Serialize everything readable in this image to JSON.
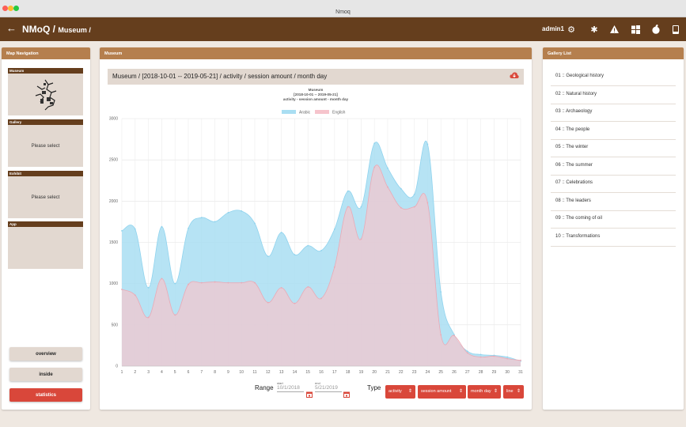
{
  "window": {
    "title": "Nmoq"
  },
  "header": {
    "brand": "NMoQ / ",
    "crumb": "Museum /",
    "user": "admin1",
    "icons": [
      "back-arrow-icon",
      "gear-icon",
      "bug-icon",
      "warning-icon",
      "windows-icon",
      "apple-icon",
      "tablet-icon"
    ]
  },
  "map_nav": {
    "title": "Map Navigation",
    "museum_label": "Museum",
    "gallery_label": "Gallery",
    "gallery_value": "Please select",
    "exhibit_label": "Exhibit",
    "exhibit_value": "Please select",
    "app_label": "App",
    "buttons": {
      "overview": "overview",
      "inside": "inside",
      "statistics": "statistics"
    }
  },
  "museum": {
    "title": "Museum",
    "path": "Museum / [2018-10-01 -- 2019-05-21] / activity / session amount / month day"
  },
  "chart_data": {
    "type": "area",
    "title": "Museum",
    "subtitle": "[2018-10-01 -- 2019-05-21]",
    "subtitle2": "activity - session amount - month day",
    "categories": [
      "1",
      "2",
      "3",
      "4",
      "5",
      "6",
      "7",
      "8",
      "9",
      "10",
      "11",
      "12",
      "13",
      "14",
      "15",
      "16",
      "17",
      "18",
      "19",
      "20",
      "21",
      "22",
      "23",
      "24",
      "25",
      "26",
      "27",
      "28",
      "29",
      "30",
      "31"
    ],
    "series": [
      {
        "name": "Arabic",
        "color": "#a9def2",
        "values": [
          1640,
          1660,
          950,
          1690,
          1000,
          1670,
          1800,
          1750,
          1860,
          1880,
          1730,
          1330,
          1620,
          1350,
          1460,
          1400,
          1660,
          2120,
          1930,
          2700,
          2400,
          2150,
          2080,
          2690,
          900,
          380,
          180,
          140,
          130,
          110,
          60
        ]
      },
      {
        "name": "English",
        "color": "#f6c4cc",
        "values": [
          930,
          860,
          590,
          1060,
          620,
          990,
          1010,
          1020,
          1010,
          1010,
          1010,
          770,
          950,
          760,
          960,
          820,
          1200,
          1930,
          1540,
          2410,
          2170,
          1920,
          1930,
          1980,
          380,
          370,
          160,
          110,
          120,
          90,
          70
        ]
      }
    ],
    "ylim": [
      0,
      3000
    ],
    "yticks": [
      "0",
      "500",
      "1000",
      "1500",
      "2000",
      "2500",
      "3000"
    ],
    "grid": true,
    "legend": "top"
  },
  "controls": {
    "range_label": "Range",
    "start_label": "start",
    "start_value": "10/1/2018",
    "end_label": "end",
    "end_value": "5/21/2019",
    "type_label": "Type",
    "selects": [
      "activity",
      "session amount",
      "month day",
      "line"
    ]
  },
  "gallery": {
    "title": "Gallery List",
    "items": [
      "01 :: Geological history",
      "02 :: Natural history",
      "03 :: Archaeology",
      "04 :: The people",
      "05 :: The winter",
      "06 :: The summer",
      "07 :: Celebrations",
      "08 :: The leaders",
      "09 :: The coming of oil",
      "10 :: Transformations"
    ]
  }
}
